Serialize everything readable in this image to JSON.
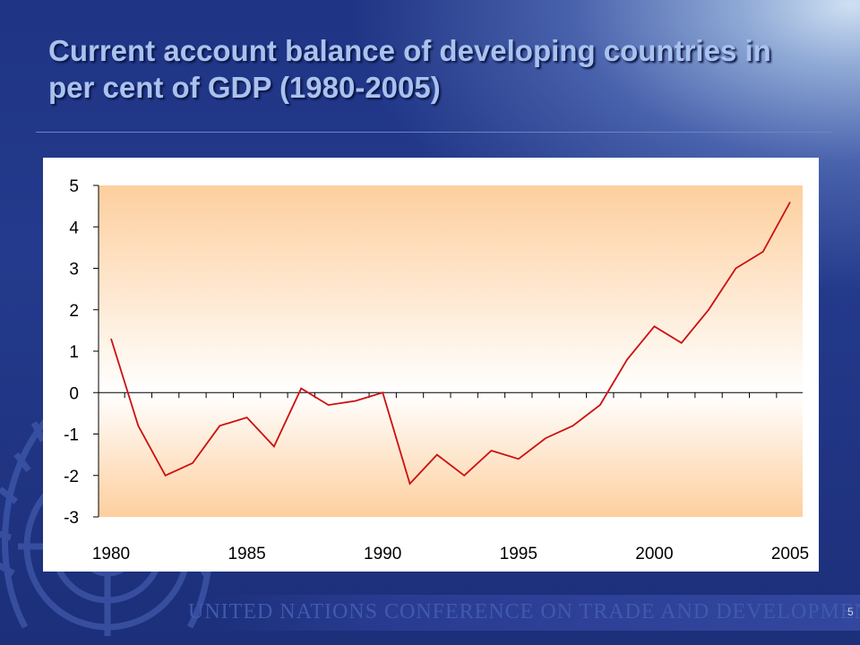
{
  "slide": {
    "title": "Current account balance of developing countries in per cent of GDP (1980-2005)",
    "footer": "UNITED NATIONS CONFERENCE ON TRADE AND DEVELOPMENT",
    "page_number": "5"
  },
  "colors": {
    "background": "#233889",
    "title": "#a9c2ee",
    "series_line": "#cc1010",
    "plot_fill_edge": "#fdcf9e",
    "plot_fill_center": "#ffffff",
    "footer": "#3f5ab0"
  },
  "icons": {
    "emblem": "un-emblem-icon"
  },
  "chart_data": {
    "type": "line",
    "title": "",
    "xlabel": "",
    "ylabel": "",
    "xlim": [
      1980,
      2005
    ],
    "ylim": [
      -3,
      5
    ],
    "y_ticks": [
      5,
      4,
      3,
      2,
      1,
      0,
      -1,
      -2,
      -3
    ],
    "x_ticks": [
      1980,
      1985,
      1990,
      1995,
      2000,
      2005
    ],
    "grid": false,
    "legend": "none",
    "x": [
      1980,
      1981,
      1982,
      1983,
      1984,
      1985,
      1986,
      1987,
      1988,
      1989,
      1990,
      1991,
      1992,
      1993,
      1994,
      1995,
      1996,
      1997,
      1998,
      1999,
      2000,
      2001,
      2002,
      2003,
      2004,
      2005
    ],
    "series": [
      {
        "values": [
          1.3,
          -0.8,
          -2.0,
          -1.7,
          -0.8,
          -0.6,
          -1.3,
          0.1,
          -0.3,
          -0.2,
          0.0,
          -2.2,
          -1.5,
          -2.0,
          -1.4,
          -1.6,
          -1.1,
          -0.8,
          -0.3,
          0.8,
          1.6,
          1.2,
          2.0,
          3.0,
          3.4,
          4.6
        ]
      }
    ]
  }
}
